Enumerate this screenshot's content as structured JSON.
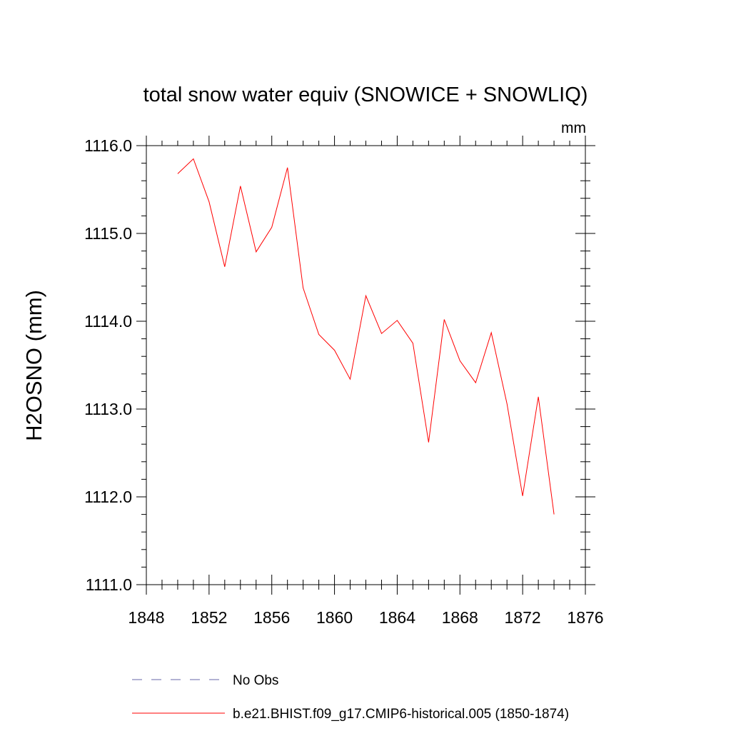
{
  "chart_data": {
    "type": "line",
    "title": "total snow water equiv (SNOWICE + SNOWLIQ)",
    "units": "mm",
    "ylabel": "H2OSNO  (mm)",
    "xlabel": "",
    "xlim": [
      1848,
      1876
    ],
    "ylim": [
      1111.0,
      1116.0
    ],
    "xticks": [
      "1848",
      "1852",
      "1856",
      "1860",
      "1864",
      "1868",
      "1872",
      "1876"
    ],
    "yticks": [
      "1111.0",
      "1112.0",
      "1113.0",
      "1114.0",
      "1115.0",
      "1116.0"
    ],
    "grid": false,
    "legend_position": "bottom",
    "series": [
      {
        "name": "No Obs",
        "color": "#6666aa",
        "style": "dashed",
        "x": [],
        "values": []
      },
      {
        "name": "b.e21.BHIST.f09_g17.CMIP6-historical.005 (1850-1874)",
        "color": "#ff0000",
        "style": "solid",
        "x": [
          1850,
          1851,
          1852,
          1853,
          1854,
          1855,
          1856,
          1857,
          1858,
          1859,
          1860,
          1861,
          1862,
          1863,
          1864,
          1865,
          1866,
          1867,
          1868,
          1869,
          1870,
          1871,
          1872,
          1873,
          1874
        ],
        "values": [
          1115.68,
          1115.85,
          1115.36,
          1114.62,
          1115.54,
          1114.79,
          1115.07,
          1115.75,
          1114.38,
          1113.85,
          1113.67,
          1113.34,
          1114.29,
          1113.86,
          1114.01,
          1113.75,
          1112.62,
          1114.02,
          1113.55,
          1113.3,
          1113.87,
          1113.06,
          1112.01,
          1113.14,
          1111.8
        ]
      }
    ]
  }
}
